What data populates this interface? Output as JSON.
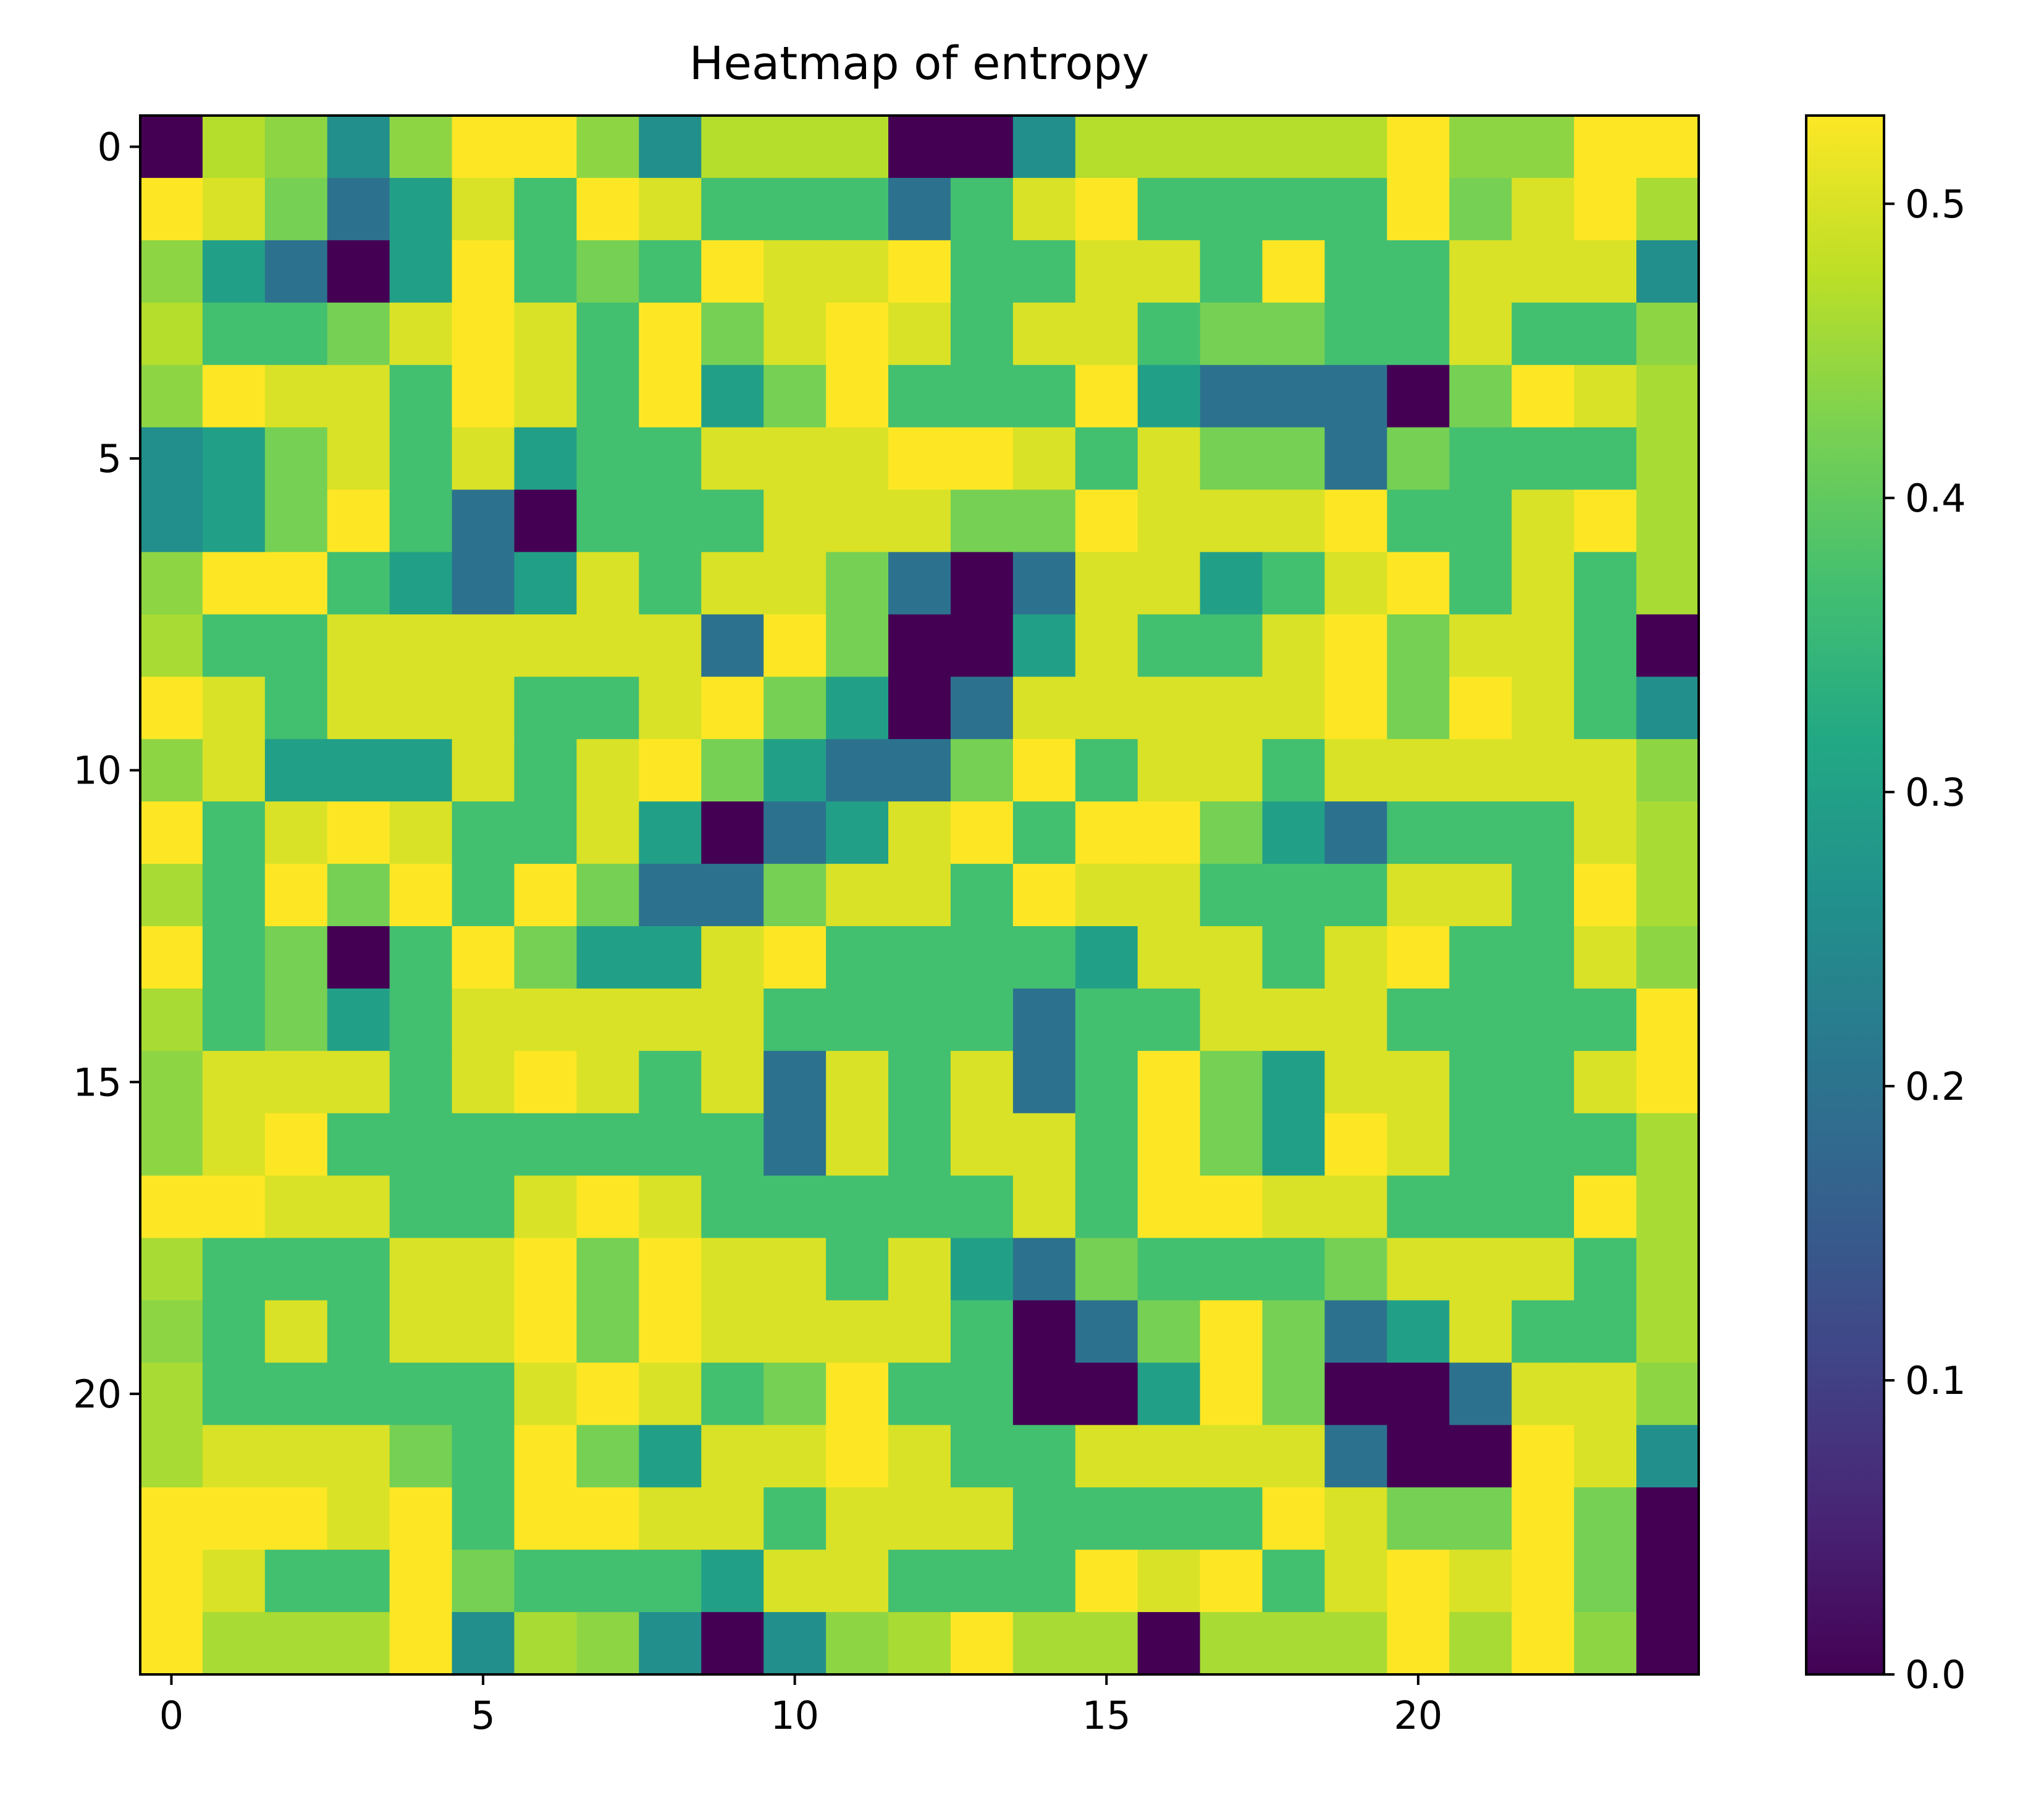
{
  "chart_data": {
    "type": "heatmap",
    "title": "Heatmap of entropy",
    "xlabel": "",
    "ylabel": "",
    "colormap": "viridis",
    "grid": false,
    "xlim": [
      -0.5,
      24.5
    ],
    "ylim": [
      24.5,
      -0.5
    ],
    "x_ticks": [
      "0",
      "5",
      "10",
      "15",
      "20"
    ],
    "y_ticks": [
      "0",
      "5",
      "10",
      "15",
      "20"
    ],
    "colorbar": {
      "range": [
        0.0,
        0.53
      ],
      "ticks": [
        "0.0",
        "0.1",
        "0.2",
        "0.3",
        "0.4",
        "0.5"
      ],
      "placement": "right"
    },
    "rows": 25,
    "cols": 25,
    "values": [
      [
        0.0,
        0.47,
        0.44,
        0.26,
        0.44,
        0.53,
        0.53,
        0.44,
        0.26,
        0.47,
        0.47,
        0.47,
        0.0,
        0.0,
        0.26,
        0.47,
        0.47,
        0.47,
        0.47,
        0.47,
        0.53,
        0.44,
        0.44,
        0.53,
        0.53
      ],
      [
        0.53,
        0.5,
        0.42,
        0.2,
        0.3,
        0.5,
        0.37,
        0.53,
        0.5,
        0.37,
        0.37,
        0.37,
        0.2,
        0.37,
        0.5,
        0.53,
        0.37,
        0.37,
        0.37,
        0.37,
        0.53,
        0.42,
        0.5,
        0.53,
        0.46
      ],
      [
        0.44,
        0.3,
        0.2,
        0.0,
        0.3,
        0.53,
        0.37,
        0.42,
        0.37,
        0.53,
        0.5,
        0.5,
        0.53,
        0.37,
        0.37,
        0.5,
        0.5,
        0.37,
        0.53,
        0.37,
        0.37,
        0.5,
        0.5,
        0.5,
        0.26
      ],
      [
        0.47,
        0.37,
        0.37,
        0.42,
        0.5,
        0.53,
        0.5,
        0.37,
        0.53,
        0.42,
        0.5,
        0.53,
        0.5,
        0.37,
        0.5,
        0.5,
        0.37,
        0.42,
        0.42,
        0.37,
        0.37,
        0.5,
        0.37,
        0.37,
        0.44
      ],
      [
        0.44,
        0.53,
        0.5,
        0.5,
        0.37,
        0.53,
        0.5,
        0.37,
        0.53,
        0.3,
        0.42,
        0.53,
        0.37,
        0.37,
        0.37,
        0.53,
        0.3,
        0.2,
        0.2,
        0.2,
        0.0,
        0.42,
        0.53,
        0.5,
        0.46
      ],
      [
        0.26,
        0.3,
        0.42,
        0.5,
        0.37,
        0.5,
        0.3,
        0.37,
        0.37,
        0.5,
        0.5,
        0.5,
        0.53,
        0.53,
        0.5,
        0.37,
        0.5,
        0.42,
        0.42,
        0.2,
        0.42,
        0.37,
        0.37,
        0.37,
        0.46
      ],
      [
        0.26,
        0.3,
        0.42,
        0.53,
        0.37,
        0.2,
        0.0,
        0.37,
        0.37,
        0.37,
        0.5,
        0.5,
        0.5,
        0.42,
        0.42,
        0.53,
        0.5,
        0.5,
        0.5,
        0.53,
        0.37,
        0.37,
        0.5,
        0.53,
        0.46
      ],
      [
        0.44,
        0.53,
        0.53,
        0.37,
        0.3,
        0.2,
        0.3,
        0.5,
        0.37,
        0.5,
        0.5,
        0.42,
        0.2,
        0.0,
        0.2,
        0.5,
        0.5,
        0.3,
        0.37,
        0.5,
        0.53,
        0.37,
        0.5,
        0.37,
        0.46
      ],
      [
        0.46,
        0.37,
        0.37,
        0.5,
        0.5,
        0.5,
        0.5,
        0.5,
        0.5,
        0.2,
        0.53,
        0.42,
        0.0,
        0.0,
        0.3,
        0.5,
        0.37,
        0.37,
        0.5,
        0.53,
        0.42,
        0.5,
        0.5,
        0.37,
        0.0
      ],
      [
        0.53,
        0.5,
        0.37,
        0.5,
        0.5,
        0.5,
        0.37,
        0.37,
        0.5,
        0.53,
        0.42,
        0.3,
        0.0,
        0.2,
        0.5,
        0.5,
        0.5,
        0.5,
        0.5,
        0.53,
        0.42,
        0.53,
        0.5,
        0.37,
        0.26
      ],
      [
        0.44,
        0.5,
        0.3,
        0.3,
        0.3,
        0.5,
        0.37,
        0.5,
        0.53,
        0.42,
        0.3,
        0.2,
        0.2,
        0.42,
        0.53,
        0.37,
        0.5,
        0.5,
        0.37,
        0.5,
        0.5,
        0.5,
        0.5,
        0.5,
        0.44
      ],
      [
        0.53,
        0.37,
        0.5,
        0.53,
        0.5,
        0.37,
        0.37,
        0.5,
        0.3,
        0.0,
        0.2,
        0.3,
        0.5,
        0.53,
        0.37,
        0.53,
        0.53,
        0.42,
        0.3,
        0.2,
        0.37,
        0.37,
        0.37,
        0.5,
        0.46
      ],
      [
        0.46,
        0.37,
        0.53,
        0.42,
        0.53,
        0.37,
        0.53,
        0.42,
        0.2,
        0.2,
        0.42,
        0.5,
        0.5,
        0.37,
        0.53,
        0.5,
        0.5,
        0.37,
        0.37,
        0.37,
        0.5,
        0.5,
        0.37,
        0.53,
        0.46
      ],
      [
        0.53,
        0.37,
        0.42,
        0.0,
        0.37,
        0.53,
        0.42,
        0.3,
        0.3,
        0.5,
        0.53,
        0.37,
        0.37,
        0.37,
        0.37,
        0.3,
        0.5,
        0.5,
        0.37,
        0.5,
        0.53,
        0.37,
        0.37,
        0.5,
        0.44
      ],
      [
        0.46,
        0.37,
        0.42,
        0.3,
        0.37,
        0.5,
        0.5,
        0.5,
        0.5,
        0.5,
        0.37,
        0.37,
        0.37,
        0.37,
        0.2,
        0.37,
        0.37,
        0.5,
        0.5,
        0.5,
        0.37,
        0.37,
        0.37,
        0.37,
        0.53
      ],
      [
        0.44,
        0.5,
        0.5,
        0.5,
        0.37,
        0.5,
        0.53,
        0.5,
        0.37,
        0.5,
        0.2,
        0.5,
        0.37,
        0.5,
        0.2,
        0.37,
        0.53,
        0.42,
        0.3,
        0.5,
        0.5,
        0.37,
        0.37,
        0.5,
        0.53
      ],
      [
        0.44,
        0.5,
        0.53,
        0.37,
        0.37,
        0.37,
        0.37,
        0.37,
        0.37,
        0.37,
        0.2,
        0.5,
        0.37,
        0.5,
        0.5,
        0.37,
        0.53,
        0.42,
        0.3,
        0.53,
        0.5,
        0.37,
        0.37,
        0.37,
        0.46
      ],
      [
        0.53,
        0.53,
        0.5,
        0.5,
        0.37,
        0.37,
        0.5,
        0.53,
        0.5,
        0.37,
        0.37,
        0.37,
        0.37,
        0.37,
        0.5,
        0.37,
        0.53,
        0.53,
        0.5,
        0.5,
        0.37,
        0.37,
        0.37,
        0.53,
        0.46
      ],
      [
        0.46,
        0.37,
        0.37,
        0.37,
        0.5,
        0.5,
        0.53,
        0.42,
        0.53,
        0.5,
        0.5,
        0.37,
        0.5,
        0.3,
        0.2,
        0.42,
        0.37,
        0.37,
        0.37,
        0.42,
        0.5,
        0.5,
        0.5,
        0.37,
        0.46
      ],
      [
        0.44,
        0.37,
        0.5,
        0.37,
        0.5,
        0.5,
        0.53,
        0.42,
        0.53,
        0.5,
        0.5,
        0.5,
        0.5,
        0.37,
        0.0,
        0.2,
        0.42,
        0.53,
        0.42,
        0.2,
        0.3,
        0.5,
        0.37,
        0.37,
        0.46
      ],
      [
        0.46,
        0.37,
        0.37,
        0.37,
        0.37,
        0.37,
        0.5,
        0.53,
        0.5,
        0.37,
        0.42,
        0.53,
        0.37,
        0.37,
        0.0,
        0.0,
        0.3,
        0.53,
        0.42,
        0.0,
        0.0,
        0.2,
        0.5,
        0.5,
        0.44
      ],
      [
        0.46,
        0.5,
        0.5,
        0.5,
        0.42,
        0.37,
        0.53,
        0.42,
        0.3,
        0.5,
        0.5,
        0.53,
        0.5,
        0.37,
        0.37,
        0.5,
        0.5,
        0.5,
        0.5,
        0.2,
        0.0,
        0.0,
        0.53,
        0.5,
        0.26
      ],
      [
        0.53,
        0.53,
        0.53,
        0.5,
        0.53,
        0.37,
        0.53,
        0.53,
        0.5,
        0.5,
        0.37,
        0.5,
        0.5,
        0.5,
        0.37,
        0.37,
        0.37,
        0.37,
        0.53,
        0.5,
        0.42,
        0.42,
        0.53,
        0.42,
        0.0
      ],
      [
        0.53,
        0.5,
        0.37,
        0.37,
        0.53,
        0.42,
        0.37,
        0.37,
        0.37,
        0.3,
        0.5,
        0.5,
        0.37,
        0.37,
        0.37,
        0.53,
        0.5,
        0.53,
        0.37,
        0.5,
        0.53,
        0.5,
        0.53,
        0.42,
        0.0
      ],
      [
        0.53,
        0.46,
        0.46,
        0.46,
        0.53,
        0.26,
        0.46,
        0.44,
        0.26,
        0.0,
        0.26,
        0.44,
        0.46,
        0.53,
        0.46,
        0.46,
        0.0,
        0.46,
        0.46,
        0.46,
        0.53,
        0.46,
        0.53,
        0.44,
        0.0
      ]
    ]
  }
}
